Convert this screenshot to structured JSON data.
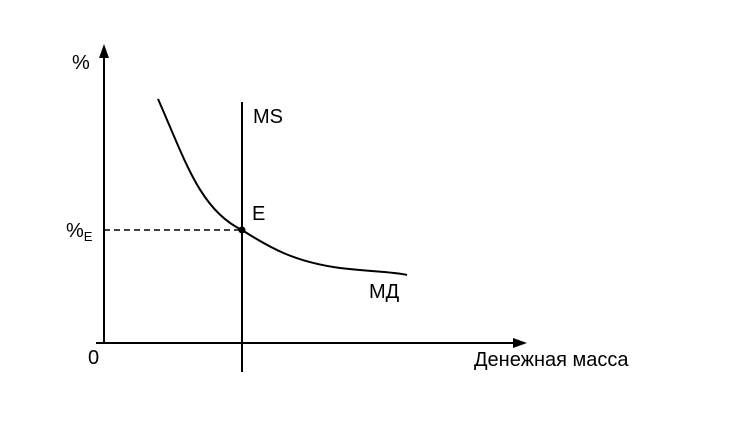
{
  "diagram": {
    "y_axis_label": "%",
    "x_axis_label": "Денежная масса",
    "origin_label": "0",
    "equilibrium_rate_label": "%",
    "equilibrium_rate_subscript": "E",
    "supply_curve_label": "MS",
    "demand_curve_label": "МД",
    "equilibrium_point_label": "E"
  },
  "colors": {
    "ink": "#000000",
    "background": "#ffffff"
  }
}
